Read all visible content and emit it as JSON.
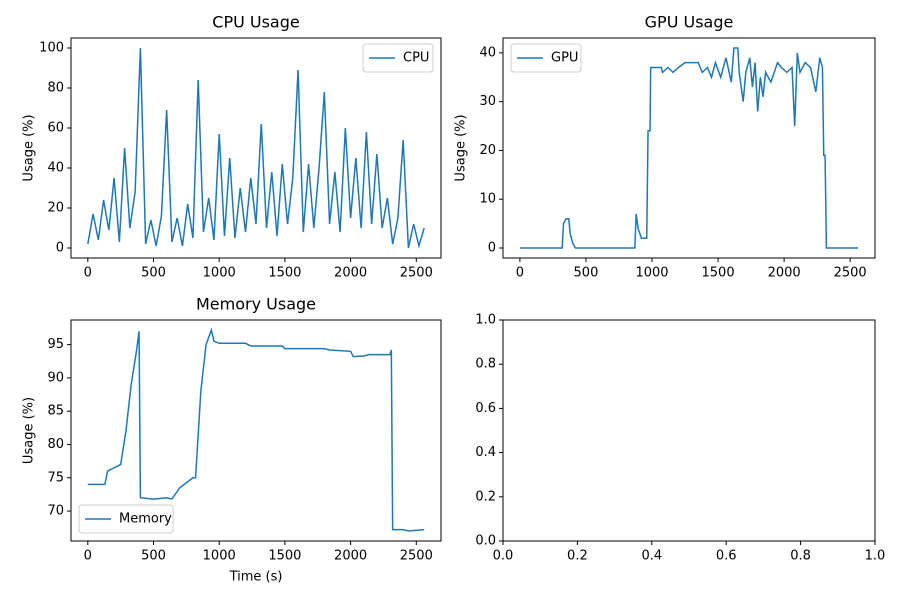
{
  "chart_data": [
    {
      "type": "line",
      "title": "CPU Usage",
      "ylabel": "Usage (%)",
      "x": [
        0,
        40,
        80,
        120,
        160,
        200,
        240,
        280,
        320,
        360,
        400,
        440,
        480,
        520,
        560,
        600,
        640,
        680,
        720,
        760,
        800,
        840,
        880,
        920,
        960,
        1000,
        1040,
        1080,
        1120,
        1160,
        1200,
        1240,
        1280,
        1320,
        1360,
        1400,
        1440,
        1480,
        1520,
        1560,
        1600,
        1640,
        1680,
        1720,
        1760,
        1800,
        1840,
        1880,
        1920,
        1960,
        2000,
        2040,
        2080,
        2120,
        2160,
        2200,
        2240,
        2280,
        2320,
        2360,
        2400,
        2440,
        2480,
        2520,
        2560
      ],
      "series": [
        {
          "name": "CPU",
          "color": "#1f77b4",
          "values": [
            2,
            17,
            4,
            24,
            9,
            35,
            3,
            50,
            10,
            28,
            100,
            2,
            14,
            1,
            16,
            69,
            3,
            15,
            1,
            22,
            5,
            84,
            8,
            25,
            4,
            57,
            6,
            45,
            5,
            30,
            8,
            35,
            12,
            62,
            10,
            38,
            6,
            42,
            12,
            35,
            89,
            8,
            42,
            10,
            40,
            78,
            12,
            38,
            8,
            60,
            15,
            45,
            10,
            58,
            12,
            47,
            10,
            25,
            2,
            15,
            54,
            0,
            12,
            1,
            10
          ]
        }
      ],
      "xlim": [
        -128,
        2688
      ],
      "ylim": [
        -5,
        105
      ],
      "xticks": [
        0,
        500,
        1000,
        1500,
        2000,
        2500
      ],
      "yticks": [
        0,
        20,
        40,
        60,
        80,
        100
      ],
      "legend": "upper right"
    },
    {
      "type": "line",
      "title": "GPU Usage",
      "ylabel": "Usage (%)",
      "x": [
        0,
        320,
        330,
        350,
        370,
        380,
        400,
        420,
        870,
        880,
        895,
        920,
        960,
        970,
        985,
        990,
        1070,
        1080,
        1120,
        1160,
        1200,
        1250,
        1350,
        1380,
        1420,
        1450,
        1480,
        1520,
        1560,
        1600,
        1620,
        1650,
        1660,
        1690,
        1710,
        1740,
        1760,
        1780,
        1800,
        1820,
        1840,
        1860,
        1900,
        1950,
        1980,
        2020,
        2060,
        2080,
        2100,
        2120,
        2160,
        2200,
        2240,
        2270,
        2290,
        2300,
        2310,
        2320,
        2560
      ],
      "series": [
        {
          "name": "GPU",
          "color": "#1f77b4",
          "values": [
            0,
            0,
            5,
            6,
            6,
            3,
            1,
            0,
            0,
            7,
            4,
            2,
            2,
            24,
            24,
            37,
            37,
            36,
            37,
            36,
            37,
            38,
            38,
            36,
            37,
            35,
            38,
            35,
            39,
            34,
            41,
            41,
            36,
            30,
            36,
            39,
            33,
            38,
            28,
            35,
            31,
            36,
            34,
            38,
            37,
            36,
            37,
            25,
            40,
            36,
            38,
            37,
            32,
            39,
            37,
            19,
            19,
            0,
            0
          ]
        }
      ],
      "xlim": [
        -128,
        2688
      ],
      "ylim": [
        -2.05,
        43.05
      ],
      "xticks": [
        0,
        500,
        1000,
        1500,
        2000,
        2500
      ],
      "yticks": [
        0,
        10,
        20,
        30,
        40
      ],
      "legend": "upper left"
    },
    {
      "type": "line",
      "title": "Memory Usage",
      "ylabel": "Usage (%)",
      "xlabel": "Time (s)",
      "x": [
        0,
        130,
        150,
        250,
        290,
        330,
        370,
        390,
        400,
        500,
        600,
        640,
        700,
        800,
        820,
        860,
        900,
        940,
        960,
        1000,
        1200,
        1240,
        1480,
        1500,
        1800,
        1840,
        2000,
        2020,
        2100,
        2140,
        2300,
        2310,
        2320,
        2400,
        2440,
        2560
      ],
      "series": [
        {
          "name": "Memory",
          "color": "#1f77b4",
          "values": [
            74,
            74,
            76,
            77,
            82,
            89,
            94,
            97,
            72,
            71.8,
            72,
            71.8,
            73.5,
            75,
            75,
            88,
            95,
            97.2,
            95.5,
            95.2,
            95.2,
            94.8,
            94.8,
            94.4,
            94.4,
            94.2,
            94,
            93.2,
            93.3,
            93.5,
            93.5,
            94.2,
            67.2,
            67.2,
            67,
            67.2
          ]
        }
      ],
      "xlim": [
        -128,
        2688
      ],
      "ylim": [
        65.5,
        98.7
      ],
      "xticks": [
        0,
        500,
        1000,
        1500,
        2000,
        2500
      ],
      "yticks": [
        70,
        75,
        80,
        85,
        90,
        95
      ],
      "legend": "lower left"
    },
    {
      "type": "empty",
      "xlim": [
        0,
        1
      ],
      "ylim": [
        0,
        1
      ],
      "xticks": [
        {
          "value": 0,
          "label": "0.0"
        },
        {
          "value": 0.2,
          "label": "0.2"
        },
        {
          "value": 0.4,
          "label": "0.4"
        },
        {
          "value": 0.6,
          "label": "0.6"
        },
        {
          "value": 0.8,
          "label": "0.8"
        },
        {
          "value": 1,
          "label": "1.0"
        }
      ],
      "yticks": [
        {
          "value": 0,
          "label": "0.0"
        },
        {
          "value": 0.2,
          "label": "0.2"
        },
        {
          "value": 0.4,
          "label": "0.4"
        },
        {
          "value": 0.6,
          "label": "0.6"
        },
        {
          "value": 0.8,
          "label": "0.8"
        },
        {
          "value": 1,
          "label": "1.0"
        }
      ]
    }
  ]
}
